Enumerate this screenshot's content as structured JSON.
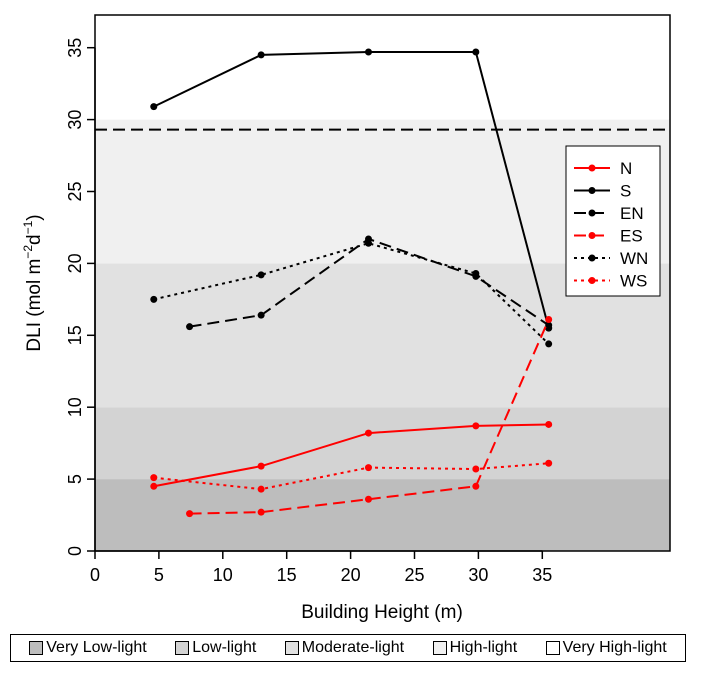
{
  "chart_data": {
    "type": "line",
    "xlabel": "Building Height (m)",
    "ylabel_main": "DLI (mol m",
    "ylabel_exp1": "−2",
    "ylabel_mid": "d",
    "ylabel_exp2": "−1",
    "ylabel_end": ")",
    "xlim": [
      0,
      45
    ],
    "ylim": [
      0,
      37
    ],
    "xticks": [
      0,
      5,
      10,
      15,
      20,
      25,
      30,
      35
    ],
    "yticks": [
      0,
      5,
      10,
      15,
      20,
      25,
      30,
      35
    ],
    "reference_line": {
      "y": 29.3,
      "style": "dashed",
      "color": "#000000"
    },
    "zones": [
      {
        "name": "Very Low-light",
        "from": 0,
        "to": 5,
        "color": "#bdbdbd"
      },
      {
        "name": "Low-light",
        "from": 5,
        "to": 10,
        "color": "#d3d3d3"
      },
      {
        "name": "Moderate-light",
        "from": 10,
        "to": 20,
        "color": "#e1e1e1"
      },
      {
        "name": "High-light",
        "from": 20,
        "to": 30,
        "color": "#f0f0f0"
      },
      {
        "name": "Very High-light",
        "from": 30,
        "to": 37,
        "color": "#ffffff"
      }
    ],
    "series": [
      {
        "name": "N",
        "color": "#ff0000",
        "dash": "solid",
        "points": [
          [
            4.6,
            4.5
          ],
          [
            13,
            5.9
          ],
          [
            21.4,
            8.2
          ],
          [
            29.8,
            8.7
          ],
          [
            35.5,
            8.8
          ]
        ]
      },
      {
        "name": "S",
        "color": "#000000",
        "dash": "solid",
        "points": [
          [
            4.6,
            30.9
          ],
          [
            13,
            34.5
          ],
          [
            21.4,
            34.7
          ],
          [
            29.8,
            34.7
          ],
          [
            35.5,
            15.5
          ]
        ]
      },
      {
        "name": "EN",
        "color": "#000000",
        "dash": "dashed",
        "points": [
          [
            7.4,
            15.6
          ],
          [
            13,
            16.4
          ],
          [
            21.4,
            21.7
          ],
          [
            29.8,
            19.1
          ],
          [
            35.5,
            15.7
          ]
        ]
      },
      {
        "name": "ES",
        "color": "#ff0000",
        "dash": "dashed",
        "points": [
          [
            7.4,
            2.6
          ],
          [
            13,
            2.7
          ],
          [
            21.4,
            3.6
          ],
          [
            29.8,
            4.5
          ],
          [
            35.5,
            16.1
          ]
        ]
      },
      {
        "name": "WN",
        "color": "#000000",
        "dash": "dotted",
        "points": [
          [
            4.6,
            17.5
          ],
          [
            13,
            19.2
          ],
          [
            21.4,
            21.4
          ],
          [
            29.8,
            19.3
          ],
          [
            35.5,
            14.4
          ]
        ]
      },
      {
        "name": "WS",
        "color": "#ff0000",
        "dash": "dotted",
        "points": [
          [
            4.6,
            5.1
          ],
          [
            13,
            4.3
          ],
          [
            21.4,
            5.8
          ],
          [
            29.8,
            5.7
          ],
          [
            35.5,
            6.1
          ]
        ]
      }
    ],
    "legend_position": "right",
    "grid": false
  }
}
